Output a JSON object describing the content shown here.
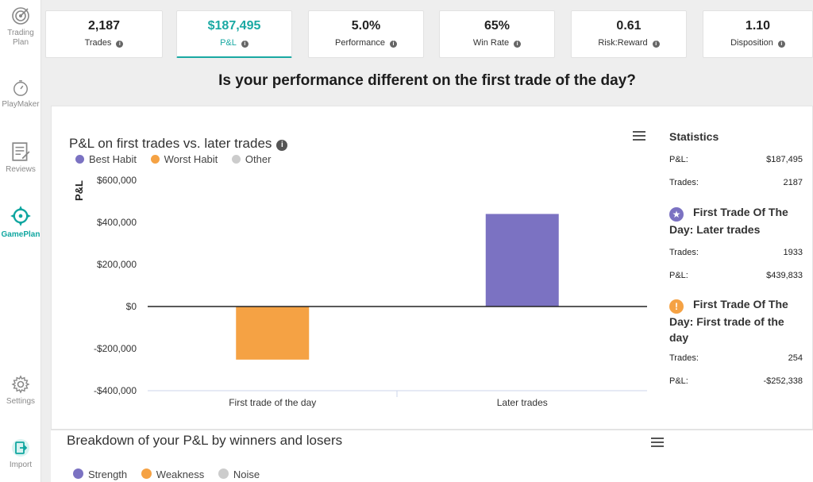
{
  "sidebar": {
    "items": [
      {
        "label": "Trading\nPlan",
        "icon": "target-icon"
      },
      {
        "label": "PlayMaker",
        "icon": "stopwatch-icon"
      },
      {
        "label": "Reviews",
        "icon": "document-icon"
      },
      {
        "label": "GamePlan",
        "icon": "compass-icon"
      },
      {
        "label": "Settings",
        "icon": "gear-icon"
      },
      {
        "label": "Import",
        "icon": "import-icon"
      }
    ]
  },
  "metrics": [
    {
      "value": "2,187",
      "label": "Trades"
    },
    {
      "value": "$187,495",
      "label": "P&L"
    },
    {
      "value": "5.0%",
      "label": "Performance"
    },
    {
      "value": "65%",
      "label": "Win Rate"
    },
    {
      "value": "0.61",
      "label": "Risk:Reward"
    },
    {
      "value": "1.10",
      "label": "Disposition"
    }
  ],
  "question": "Is your performance different on the first trade of the day?",
  "chart_panel": {
    "title": "P&L on first trades vs. later trades",
    "legend": [
      {
        "label": "Best Habit",
        "color": "#7b72c2"
      },
      {
        "label": "Worst Habit",
        "color": "#f5a244"
      },
      {
        "label": "Other",
        "color": "#cccccc"
      }
    ]
  },
  "chart_data": {
    "type": "bar",
    "title": "P&L on first trades vs. later trades",
    "ylabel": "P&L",
    "xlabel": "",
    "categories": [
      "First trade of the day",
      "Later trades"
    ],
    "values": [
      -252338,
      439833
    ],
    "colors": [
      "#f5a244",
      "#7b72c2"
    ],
    "ylim": [
      -400000,
      600000
    ],
    "yticks": [
      {
        "v": 600000,
        "label": "$600,000"
      },
      {
        "v": 400000,
        "label": "$400,000"
      },
      {
        "v": 200000,
        "label": "$200,000"
      },
      {
        "v": 0,
        "label": "$0"
      },
      {
        "v": -200000,
        "label": "-$200,000"
      },
      {
        "v": -400000,
        "label": "-$400,000"
      }
    ],
    "legend_position": "top-left",
    "grid": false
  },
  "stats": {
    "title": "Statistics",
    "overall": {
      "pnl_label": "P&L:",
      "pnl": "$187,495",
      "trades_label": "Trades:",
      "trades": "2187"
    },
    "later": {
      "title": "First Trade Of The Day: Later trades",
      "badge": "★",
      "badge_color": "#7b72c2",
      "trades_label": "Trades:",
      "trades": "1933",
      "pnl_label": "P&L:",
      "pnl": "$439,833"
    },
    "first": {
      "title": "First Trade Of The Day: First trade of the day",
      "badge": "!",
      "badge_color": "#f5a244",
      "trades_label": "Trades:",
      "trades": "254",
      "pnl_label": "P&L:",
      "pnl": "-$252,338"
    }
  },
  "breakdown": {
    "title": "Breakdown of your P&L by winners and losers",
    "legend": [
      {
        "label": "Strength",
        "color": "#7b72c2"
      },
      {
        "label": "Weakness",
        "color": "#f5a244"
      },
      {
        "label": "Noise",
        "color": "#cccccc"
      }
    ]
  }
}
